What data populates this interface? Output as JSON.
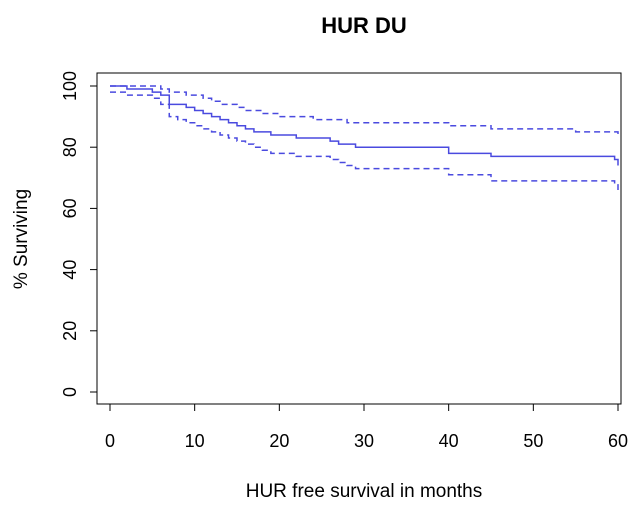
{
  "chart_data": {
    "type": "line",
    "title": "HUR DU",
    "xlabel": "HUR free survival in months",
    "ylabel": "% Surviving",
    "xlim": [
      0,
      60
    ],
    "ylim": [
      0,
      100
    ],
    "x_ticks": [
      "0",
      "10",
      "20",
      "30",
      "40",
      "50",
      "60"
    ],
    "y_ticks": [
      "0",
      "20",
      "40",
      "60",
      "80",
      "100"
    ],
    "grid": false,
    "legend": "none",
    "line_color": "#4a4adf",
    "series": [
      {
        "style": "solid",
        "x": [
          0,
          2,
          4,
          5,
          6,
          7,
          8,
          9,
          10,
          11,
          12,
          13,
          14,
          15,
          16,
          17,
          18,
          19,
          20,
          22,
          24,
          26,
          27,
          28,
          29,
          30,
          35,
          40,
          45,
          50,
          55,
          59.6,
          60
        ],
        "y": [
          100,
          99,
          99,
          98,
          97,
          94,
          94,
          93,
          92,
          91,
          90,
          89,
          88,
          87,
          86,
          85,
          85,
          84,
          84,
          83,
          83,
          82,
          81,
          81,
          80,
          80,
          80,
          78,
          77,
          77,
          77,
          76,
          74
        ]
      },
      {
        "style": "dashed",
        "x": [
          0,
          3,
          5,
          6,
          7,
          8,
          9,
          10,
          11,
          12,
          13,
          14,
          15,
          16,
          17,
          18,
          19,
          20,
          22,
          24,
          26,
          28,
          30,
          35,
          40,
          45,
          50,
          55,
          59.6,
          60
        ],
        "y": [
          100,
          100,
          100,
          99,
          98,
          98,
          97,
          97,
          96,
          95,
          94,
          94,
          93,
          92,
          92,
          91,
          91,
          90,
          90,
          89,
          89,
          88,
          88,
          88,
          87,
          86,
          86,
          85,
          85,
          83
        ]
      },
      {
        "style": "dashed",
        "x": [
          0,
          2,
          4,
          5,
          6,
          7,
          8,
          9,
          10,
          11,
          12,
          13,
          14,
          15,
          16,
          17,
          18,
          19,
          20,
          22,
          24,
          26,
          27,
          28,
          29,
          30,
          35,
          40,
          45,
          50,
          55,
          59.6,
          60
        ],
        "y": [
          98,
          97,
          97,
          96,
          94,
          90,
          89,
          88,
          87,
          86,
          85,
          84,
          83,
          82,
          81,
          80,
          79,
          78,
          78,
          77,
          77,
          76,
          75,
          74,
          73,
          73,
          73,
          71,
          69,
          69,
          69,
          68,
          66
        ]
      }
    ]
  }
}
